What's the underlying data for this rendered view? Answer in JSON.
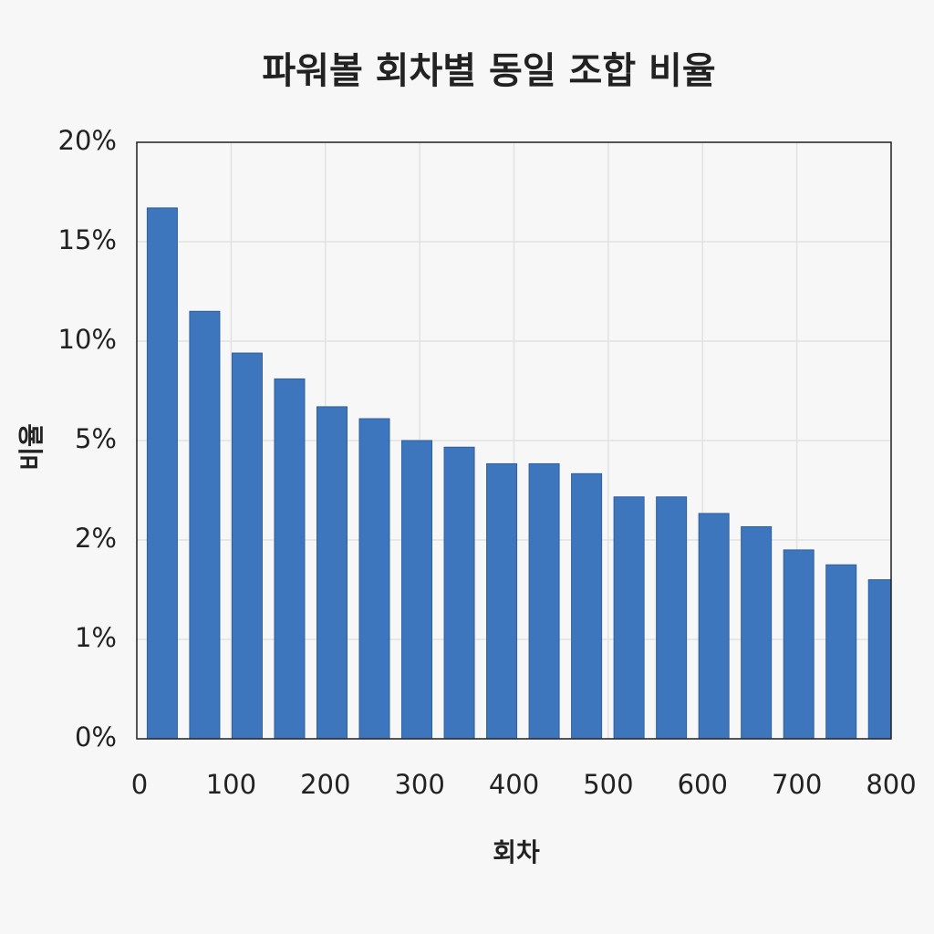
{
  "chart_data": {
    "type": "bar",
    "title": "파워볼 회차별 동일 조합 비율",
    "x_label": "회차",
    "y_label": "비율",
    "x": [
      27,
      72,
      117,
      162,
      207,
      252,
      297,
      342,
      387,
      432,
      477,
      522,
      567,
      612,
      657,
      702,
      747,
      792
    ],
    "values": [
      16.7,
      11.5,
      9.4,
      8.1,
      6.7,
      6.1,
      5.0,
      4.8,
      4.3,
      4.3,
      4.0,
      3.3,
      3.3,
      2.8,
      2.4,
      1.9,
      1.75,
      1.6
    ],
    "color": "#3d76bd",
    "xlim": [
      0,
      800
    ],
    "xticks": [
      0,
      100,
      200,
      300,
      400,
      500,
      600,
      700,
      800
    ],
    "ylim": [
      0,
      20
    ],
    "yticks": [
      {
        "value": 0,
        "label": "0%"
      },
      {
        "value": 1,
        "label": "1%"
      },
      {
        "value": 2,
        "label": "2%"
      },
      {
        "value": 5,
        "label": "5%"
      },
      {
        "value": 10,
        "label": "10%"
      },
      {
        "value": 15,
        "label": "15%"
      },
      {
        "value": 20,
        "label": "20%"
      }
    ],
    "grid": true
  }
}
